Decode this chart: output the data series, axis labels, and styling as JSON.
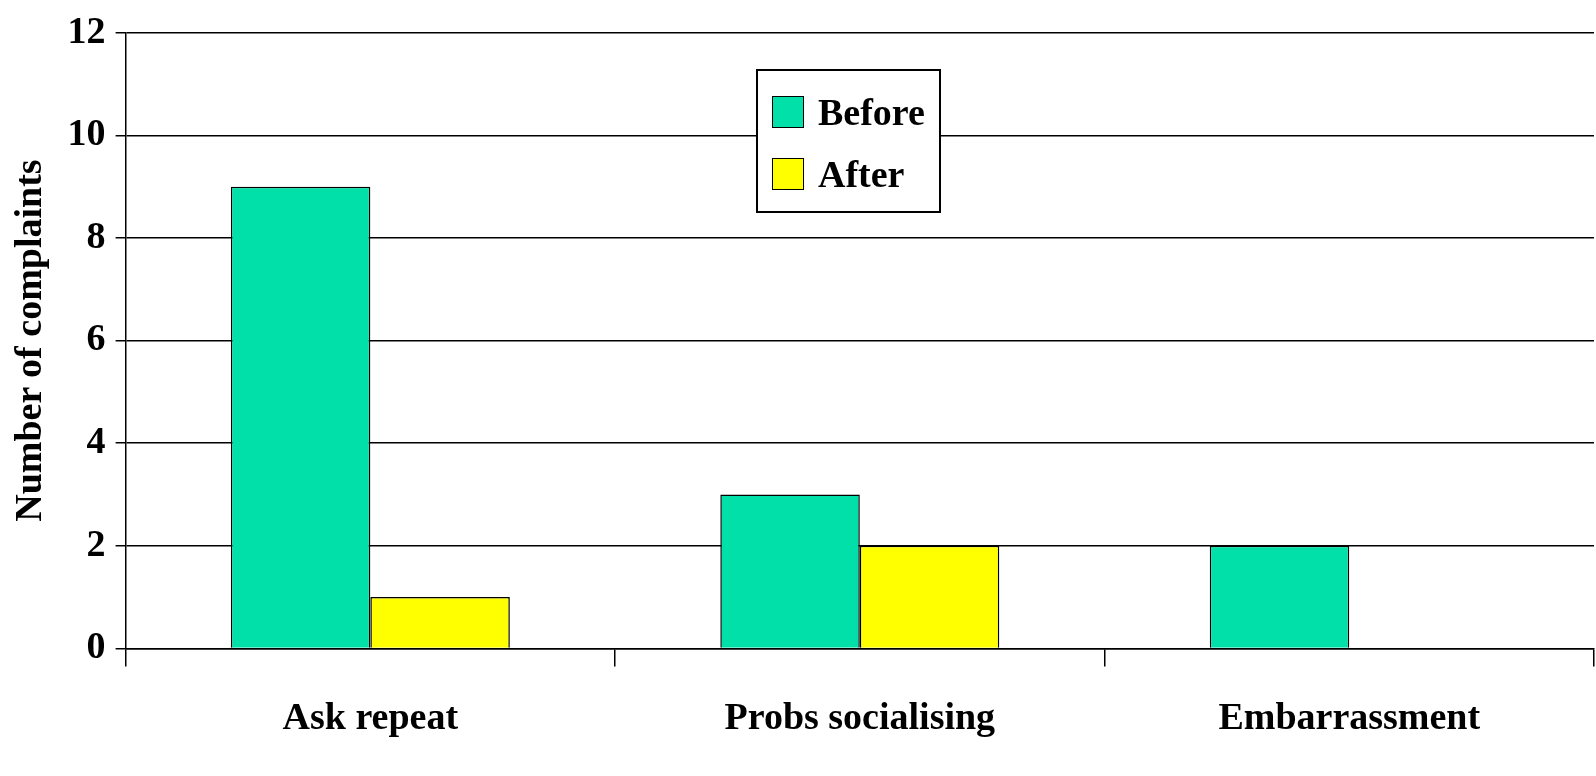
{
  "chart_data": {
    "type": "bar",
    "ylabel": "Number of complaints",
    "categories": [
      "Ask repeat",
      "Probs socialising",
      "Embarrassment"
    ],
    "series": [
      {
        "name": "Before",
        "color": "#00e0a8",
        "values": [
          9,
          3,
          2
        ]
      },
      {
        "name": "After",
        "color": "#ffff00",
        "values": [
          1,
          2,
          0
        ]
      }
    ],
    "ylim": [
      0,
      12
    ],
    "yticks": [
      0,
      2,
      4,
      6,
      8,
      10,
      12
    ],
    "grid": "y",
    "legend": "top"
  }
}
